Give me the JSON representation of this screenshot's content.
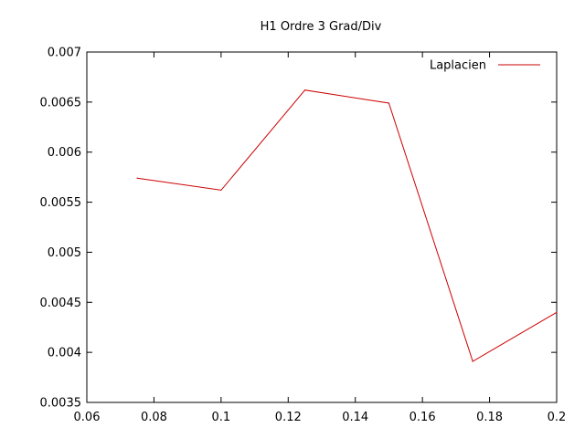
{
  "chart_data": {
    "type": "line",
    "title": "H1 Ordre 3 Grad/Div",
    "xlabel": "",
    "ylabel": "",
    "xlim": [
      0.06,
      0.2
    ],
    "ylim": [
      0.0035,
      0.007
    ],
    "xticks": [
      0.06,
      0.08,
      0.1,
      0.12,
      0.14,
      0.16,
      0.18,
      0.2
    ],
    "xtick_labels": [
      "0.06",
      "0.08",
      "0.1",
      "0.12",
      "0.14",
      "0.16",
      "0.18",
      "0.2"
    ],
    "yticks": [
      0.0035,
      0.004,
      0.0045,
      0.005,
      0.0055,
      0.006,
      0.0065,
      0.007
    ],
    "ytick_labels": [
      "0.0035",
      "0.004",
      "0.0045",
      "0.005",
      "0.0055",
      "0.006",
      "0.0065",
      "0.007"
    ],
    "grid": false,
    "legend_position": "top-right",
    "series": [
      {
        "name": "Laplacien",
        "color": "#cc0000",
        "x": [
          0.075,
          0.1,
          0.125,
          0.15,
          0.175,
          0.2
        ],
        "y": [
          0.00574,
          0.00562,
          0.00662,
          0.00649,
          0.00391,
          0.0044
        ]
      }
    ]
  }
}
